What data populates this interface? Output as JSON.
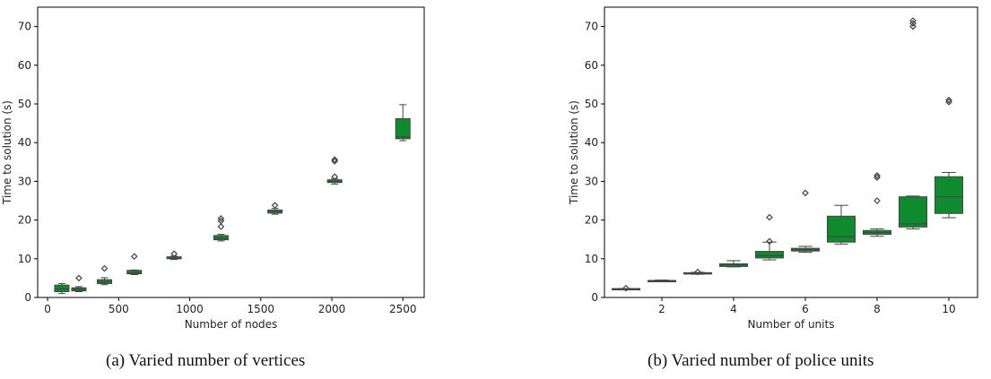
{
  "chart_data": [
    {
      "type": "box",
      "title": "",
      "xlabel": "Number of nodes",
      "ylabel": "Time to solution (s)",
      "xlim": [
        -70,
        2650
      ],
      "ylim": [
        0,
        75
      ],
      "xticks": [
        0,
        500,
        1000,
        1500,
        2000,
        2500
      ],
      "yticks": [
        0,
        10,
        20,
        30,
        40,
        50,
        60,
        70
      ],
      "color": "#0e8a2f",
      "boxes": [
        {
          "x": 100,
          "whislo": 1.0,
          "q1": 1.5,
          "med": 2.2,
          "q3": 3.2,
          "whishi": 3.6,
          "fliers": []
        },
        {
          "x": 220,
          "whislo": 1.5,
          "q1": 1.7,
          "med": 2.1,
          "q3": 2.5,
          "whishi": 2.8,
          "fliers": [
            5.0
          ]
        },
        {
          "x": 400,
          "whislo": 3.3,
          "q1": 3.6,
          "med": 4.0,
          "q3": 4.6,
          "whishi": 5.1,
          "fliers": [
            7.5
          ]
        },
        {
          "x": 610,
          "whislo": 5.9,
          "q1": 6.1,
          "med": 6.4,
          "q3": 7.0,
          "whishi": 7.1,
          "fliers": [
            10.6
          ]
        },
        {
          "x": 890,
          "whislo": 9.8,
          "q1": 10.0,
          "med": 10.2,
          "q3": 10.5,
          "whishi": 10.7,
          "fliers": [
            11.3
          ]
        },
        {
          "x": 1220,
          "whislo": 14.6,
          "q1": 14.9,
          "med": 15.3,
          "q3": 16.0,
          "whishi": 16.3,
          "fliers": [
            18.3,
            19.8,
            20.4
          ]
        },
        {
          "x": 1600,
          "whislo": 21.5,
          "q1": 21.8,
          "med": 22.2,
          "q3": 22.6,
          "whishi": 23.0,
          "fliers": [
            23.8
          ]
        },
        {
          "x": 2020,
          "whislo": 29.3,
          "q1": 29.7,
          "med": 30.0,
          "q3": 30.4,
          "whishi": 30.7,
          "fliers": [
            31.2,
            35.2,
            35.6
          ]
        },
        {
          "x": 2500,
          "whislo": 40.5,
          "q1": 41.0,
          "med": 41.5,
          "q3": 46.2,
          "whishi": 49.8,
          "fliers": []
        }
      ]
    },
    {
      "type": "box",
      "title": "",
      "xlabel": "Number of units",
      "ylabel": "Time to solution (s)",
      "xlim": [
        0.4,
        10.8
      ],
      "ylim": [
        0,
        75
      ],
      "xticks": [
        2,
        4,
        6,
        8,
        10
      ],
      "yticks": [
        0,
        10,
        20,
        30,
        40,
        50,
        60,
        70
      ],
      "color": "#0e8a2f",
      "boxes": [
        {
          "x": 1,
          "whislo": 2.1,
          "q1": 2.1,
          "med": 2.2,
          "q3": 2.3,
          "whishi": 2.3,
          "fliers": [
            2.4
          ]
        },
        {
          "x": 2,
          "whislo": 4.1,
          "q1": 4.2,
          "med": 4.3,
          "q3": 4.4,
          "whishi": 4.5,
          "fliers": []
        },
        {
          "x": 3,
          "whislo": 6.0,
          "q1": 6.1,
          "med": 6.3,
          "q3": 6.4,
          "whishi": 6.5,
          "fliers": [
            6.6
          ]
        },
        {
          "x": 4,
          "whislo": 7.9,
          "q1": 8.0,
          "med": 8.4,
          "q3": 8.7,
          "whishi": 9.5,
          "fliers": []
        },
        {
          "x": 5,
          "whislo": 9.7,
          "q1": 10.2,
          "med": 10.8,
          "q3": 11.9,
          "whishi": 14.3,
          "fliers": [
            14.5,
            20.7
          ]
        },
        {
          "x": 6,
          "whislo": 11.7,
          "q1": 12.0,
          "med": 12.3,
          "q3": 12.7,
          "whishi": 13.2,
          "fliers": [
            27.0
          ]
        },
        {
          "x": 7,
          "whislo": 13.8,
          "q1": 14.3,
          "med": 15.7,
          "q3": 21.0,
          "whishi": 23.8,
          "fliers": []
        },
        {
          "x": 8,
          "whislo": 15.8,
          "q1": 16.3,
          "med": 16.8,
          "q3": 17.3,
          "whishi": 17.7,
          "fliers": [
            25.0,
            31.0,
            31.5
          ]
        },
        {
          "x": 9,
          "whislo": 17.7,
          "q1": 18.2,
          "med": 19.0,
          "q3": 26.0,
          "whishi": 26.2,
          "fliers": [
            70.0,
            70.8,
            71.5
          ]
        },
        {
          "x": 10,
          "whislo": 20.6,
          "q1": 21.7,
          "med": 26.0,
          "q3": 31.2,
          "whishi": 32.3,
          "fliers": [
            50.5,
            51.0
          ]
        }
      ]
    }
  ],
  "captions": {
    "a": "(a) Varied number of vertices",
    "b": "(b) Varied number of police units"
  }
}
